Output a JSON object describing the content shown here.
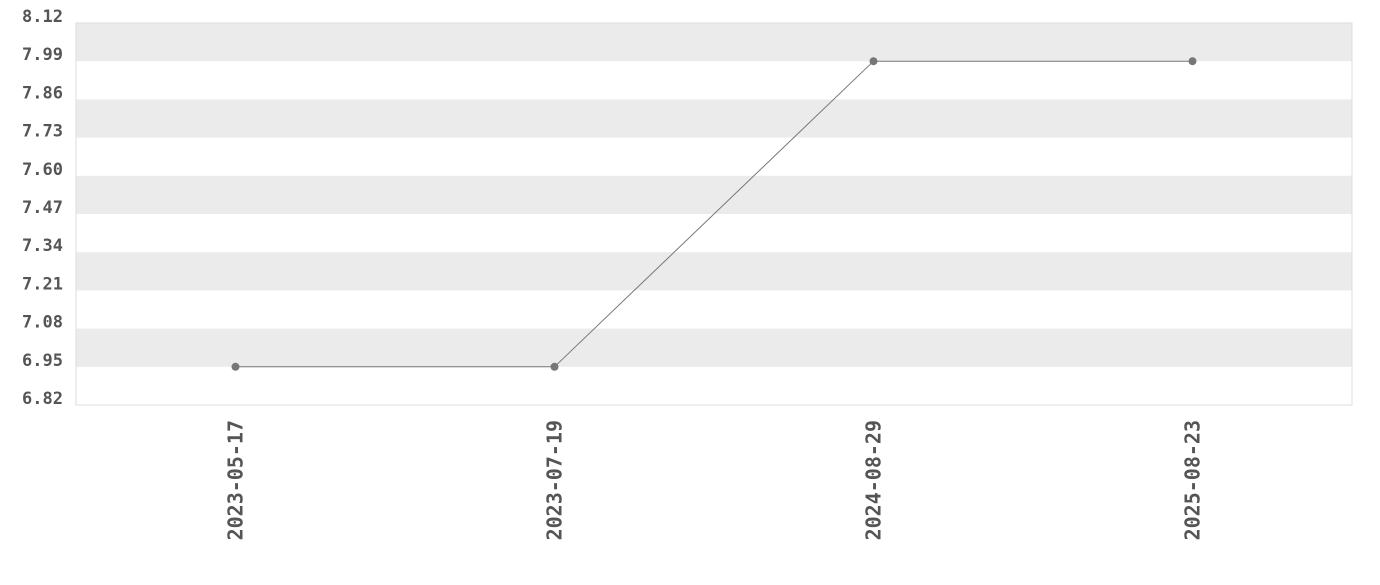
{
  "chart_data": {
    "type": "line",
    "categories": [
      "2023-05-17",
      "2023-07-19",
      "2024-08-29",
      "2025-08-23"
    ],
    "values": [
      6.95,
      6.95,
      7.99,
      7.99
    ],
    "y_ticks": [
      "6.82",
      "6.95",
      "7.08",
      "7.21",
      "7.34",
      "7.47",
      "7.60",
      "7.73",
      "7.86",
      "7.99",
      "8.12"
    ],
    "ylim": [
      6.82,
      8.12
    ],
    "title": "",
    "xlabel": "",
    "ylabel": "",
    "grid": "alternating horizontal bands",
    "legend": "none",
    "colors": {
      "line": "#777777",
      "marker": "#777777",
      "band": "#ebebeb",
      "text": "#555555",
      "border": "#dddddd"
    }
  }
}
